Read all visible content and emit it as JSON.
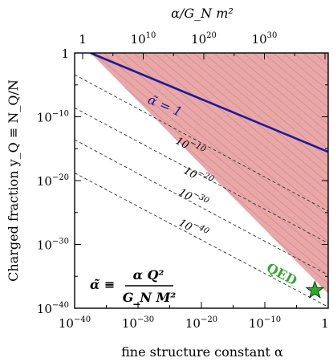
{
  "chart_data": {
    "type": "line",
    "top_axis_label": "α/G_N m²",
    "xlabel": "fine structure constant α",
    "ylabel": "Charged fraction y_Q ≡ N_Q/N",
    "x_log10_range": [
      -40,
      0
    ],
    "y_log10_range": [
      -40,
      0
    ],
    "top_axis_log10_range": [
      0,
      40
    ],
    "x_ticks": [
      {
        "log10": -40,
        "label": "10",
        "sup": "−40"
      },
      {
        "log10": -30,
        "label": "10",
        "sup": "−30"
      },
      {
        "log10": -20,
        "label": "10",
        "sup": "−20"
      },
      {
        "log10": -10,
        "label": "10",
        "sup": "−10"
      },
      {
        "log10": 0,
        "label": "1",
        "sup": ""
      }
    ],
    "y_ticks": [
      {
        "log10": 0,
        "label": "1",
        "sup": ""
      },
      {
        "log10": -10,
        "label": "10",
        "sup": "−10"
      },
      {
        "log10": -20,
        "label": "10",
        "sup": "−20"
      },
      {
        "log10": -30,
        "label": "10",
        "sup": "−30"
      },
      {
        "log10": -40,
        "label": "10",
        "sup": "−40"
      }
    ],
    "top_ticks": [
      {
        "log10": 0,
        "label": "1",
        "sup": ""
      },
      {
        "log10": 10,
        "label": "10",
        "sup": "10"
      },
      {
        "log10": 20,
        "label": "10",
        "sup": "20"
      },
      {
        "log10": 30,
        "label": "10",
        "sup": "30"
      }
    ],
    "excluded_region": {
      "color": "#e8a8a8",
      "hatch_color": "#d27c7c",
      "vertices_log10": [
        [
          -37.5,
          0
        ],
        [
          0,
          0
        ],
        [
          0,
          -37.7
        ]
      ]
    },
    "main_line": {
      "label": "α̃ = 1",
      "color": "#1a1a9c",
      "points_log10": [
        [
          -37.5,
          0
        ],
        [
          0,
          -15.5
        ]
      ]
    },
    "contours": [
      {
        "label": "10",
        "sup": "−10",
        "points_log10": [
          [
            -40,
            -3.4
          ],
          [
            0,
            -24.8
          ]
        ]
      },
      {
        "label": "10",
        "sup": "−20",
        "points_log10": [
          [
            -40,
            -8.6
          ],
          [
            0,
            -29.8
          ]
        ]
      },
      {
        "label": "10",
        "sup": "−30",
        "points_log10": [
          [
            -40,
            -13.6
          ],
          [
            0,
            -34.8
          ]
        ]
      },
      {
        "label": "10",
        "sup": "−40",
        "points_log10": [
          [
            -40,
            -18.8
          ],
          [
            0,
            -39.8
          ]
        ]
      }
    ],
    "point": {
      "label": "QED",
      "color": "#2eaa2e",
      "x_log10": -2.1,
      "y_log10": -37.2
    },
    "formula": {
      "lhs": "α̃ ≡",
      "numerator": "α Q²",
      "denominator": "G_N M²"
    }
  }
}
